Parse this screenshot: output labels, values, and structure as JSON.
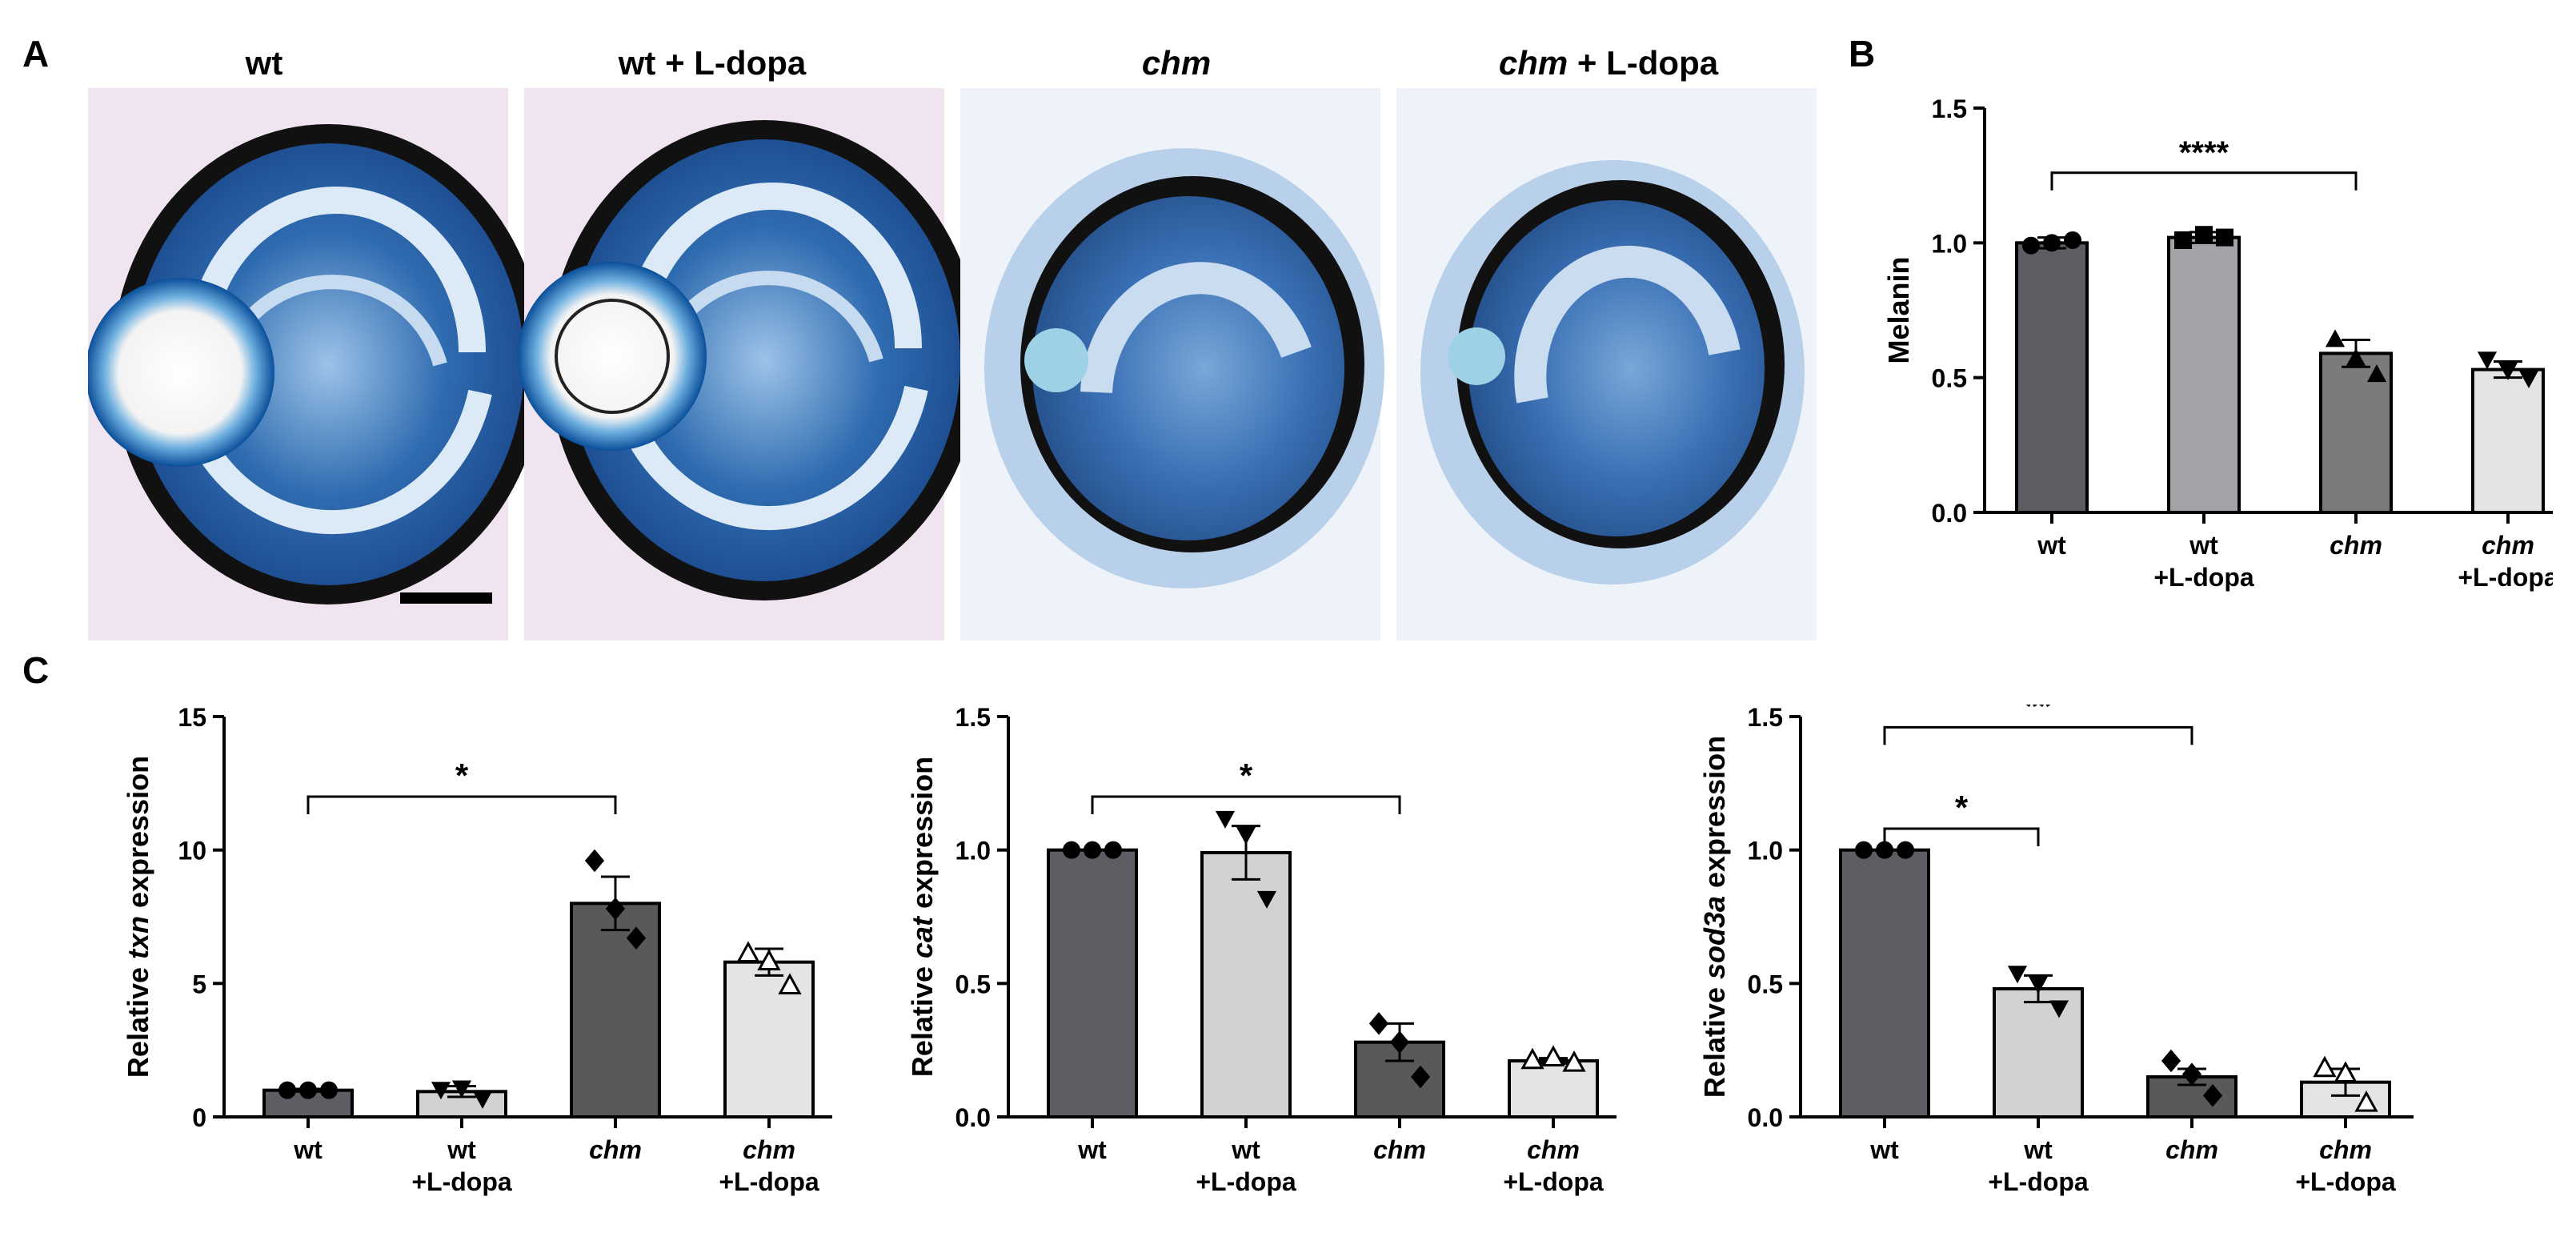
{
  "figure": {
    "panel_A": {
      "letter": "A",
      "images": [
        {
          "label_plain": "wt",
          "label_italic": "",
          "label_suffix": ""
        },
        {
          "label_plain": "wt + L-dopa",
          "label_italic": "",
          "label_suffix": ""
        },
        {
          "label_plain": "",
          "label_italic": "chm",
          "label_suffix": ""
        },
        {
          "label_plain": "",
          "label_italic": "chm",
          "label_suffix": " + L-dopa"
        }
      ]
    },
    "panel_B": {
      "letter": "B"
    },
    "panel_C": {
      "letter": "C"
    }
  },
  "colors": {
    "bar_wt": "#5f5c63",
    "bar_wt_ldopa_B": "#a3a2a7",
    "bar_chm_B": "#7b7b7b",
    "bar_chm_ldopa": "#e4e4e4",
    "bar_C_wt_ldopa": "#d2d2d2",
    "bar_C_chm": "#595959",
    "eye_blue": "#2f6bb0",
    "rpe_black": "#111111",
    "tissue_pink": "#e6d6e6"
  },
  "chart_data": [
    {
      "panel": "B",
      "type": "bar",
      "ylabel": "Melanin",
      "ylabel_italic": "",
      "ylabel_suffix": "",
      "ylim": [
        0,
        1.5
      ],
      "yticks": [
        "0.0",
        "0.5",
        "1.0",
        "1.5"
      ],
      "ytick_values": [
        0,
        0.5,
        1.0,
        1.5
      ],
      "categories": [
        {
          "line1": "wt",
          "line2": "",
          "italic": false
        },
        {
          "line1": "wt",
          "line2": "+L-dopa",
          "italic": false
        },
        {
          "line1": "chm",
          "line2": "",
          "italic": true
        },
        {
          "line1": "chm",
          "line2": "+L-dopa",
          "italic": true
        }
      ],
      "values": [
        1.0,
        1.02,
        0.59,
        0.53
      ],
      "errors": [
        0.02,
        0.02,
        0.05,
        0.03
      ],
      "points": [
        [
          0.99,
          1.0,
          1.01
        ],
        [
          1.01,
          1.03,
          1.02
        ],
        [
          0.64,
          0.57,
          0.51
        ],
        [
          0.57,
          0.53,
          0.5
        ]
      ],
      "markers": [
        "circle",
        "square",
        "triangle-up",
        "triangle-down"
      ],
      "significance": [
        {
          "from": 0,
          "to": 2,
          "label": "****",
          "y": 1.26
        }
      ]
    },
    {
      "panel": "C1",
      "type": "bar",
      "ylabel": "Relative ",
      "ylabel_italic": "txn",
      "ylabel_suffix": " expression",
      "ylim": [
        0,
        15
      ],
      "yticks": [
        "0",
        "5",
        "10",
        "15"
      ],
      "ytick_values": [
        0,
        5,
        10,
        15
      ],
      "categories": [
        {
          "line1": "wt",
          "line2": "",
          "italic": false
        },
        {
          "line1": "wt",
          "line2": "+L-dopa",
          "italic": false
        },
        {
          "line1": "chm",
          "line2": "",
          "italic": true
        },
        {
          "line1": "chm",
          "line2": "+L-dopa",
          "italic": true
        }
      ],
      "values": [
        1.0,
        0.95,
        8.0,
        5.8
      ],
      "errors": [
        0.05,
        0.2,
        1.0,
        0.5
      ],
      "points": [
        [
          1.0,
          1.0,
          1.0
        ],
        [
          1.05,
          1.1,
          0.7
        ],
        [
          9.6,
          7.8,
          6.7
        ],
        [
          6.1,
          5.8,
          4.9
        ]
      ],
      "markers": [
        "circle",
        "triangle-down",
        "diamond",
        "triangle-up-open"
      ],
      "significance": [
        {
          "from": 0,
          "to": 2,
          "label": "*",
          "y": 12.0
        }
      ]
    },
    {
      "panel": "C2",
      "type": "bar",
      "ylabel": "Relative ",
      "ylabel_italic": "cat",
      "ylabel_suffix": " expression",
      "ylim": [
        0,
        1.5
      ],
      "yticks": [
        "0.0",
        "0.5",
        "1.0",
        "1.5"
      ],
      "ytick_values": [
        0,
        0.5,
        1.0,
        1.5
      ],
      "categories": [
        {
          "line1": "wt",
          "line2": "",
          "italic": false
        },
        {
          "line1": "wt",
          "line2": "+L-dopa",
          "italic": false
        },
        {
          "line1": "chm",
          "line2": "",
          "italic": true
        },
        {
          "line1": "chm",
          "line2": "+L-dopa",
          "italic": true
        }
      ],
      "values": [
        1.0,
        0.99,
        0.28,
        0.21
      ],
      "errors": [
        0.0,
        0.1,
        0.07,
        0.01
      ],
      "points": [
        [
          1.0,
          1.0,
          1.0
        ],
        [
          1.12,
          1.06,
          0.82
        ],
        [
          0.35,
          0.28,
          0.15
        ],
        [
          0.21,
          0.22,
          0.2
        ]
      ],
      "markers": [
        "circle",
        "triangle-down",
        "diamond",
        "triangle-up-open"
      ],
      "significance": [
        {
          "from": 0,
          "to": 2,
          "label": "*",
          "y": 1.2
        }
      ]
    },
    {
      "panel": "C3",
      "type": "bar",
      "ylabel": "Relative ",
      "ylabel_italic": "sod3a",
      "ylabel_suffix": " expression",
      "ylim": [
        0,
        1.5
      ],
      "yticks": [
        "0.0",
        "0.5",
        "1.0",
        "1.5"
      ],
      "ytick_values": [
        0,
        0.5,
        1.0,
        1.5
      ],
      "categories": [
        {
          "line1": "wt",
          "line2": "",
          "italic": false
        },
        {
          "line1": "wt",
          "line2": "+L-dopa",
          "italic": false
        },
        {
          "line1": "chm",
          "line2": "",
          "italic": true
        },
        {
          "line1": "chm",
          "line2": "+L-dopa",
          "italic": true
        }
      ],
      "values": [
        1.0,
        0.48,
        0.15,
        0.13
      ],
      "errors": [
        0.0,
        0.05,
        0.03,
        0.05
      ],
      "points": [
        [
          1.0,
          1.0,
          1.0
        ],
        [
          0.54,
          0.5,
          0.41
        ],
        [
          0.21,
          0.16,
          0.08
        ],
        [
          0.18,
          0.16,
          0.05
        ]
      ],
      "markers": [
        "circle",
        "triangle-down",
        "diamond",
        "triangle-up-open"
      ],
      "significance": [
        {
          "from": 0,
          "to": 2,
          "label": "**",
          "y": 1.46
        },
        {
          "from": 0,
          "to": 1,
          "label": "*",
          "y": 1.08
        }
      ]
    }
  ]
}
